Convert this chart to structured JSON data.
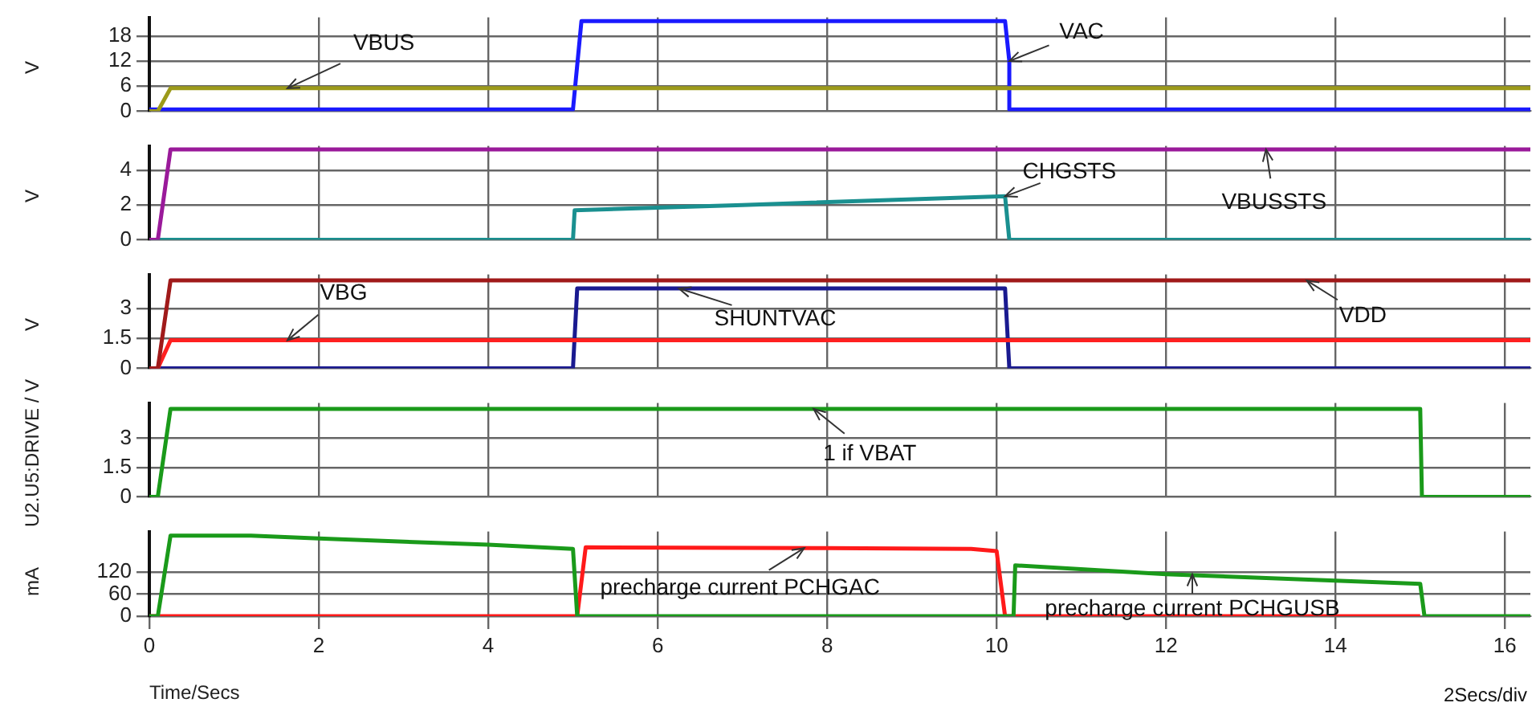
{
  "chart_data": [
    {
      "type": "line",
      "ylabel": "V",
      "xlim": [
        0,
        16.3
      ],
      "xticks": [
        0,
        2,
        4,
        6,
        8,
        10,
        12,
        14,
        16
      ],
      "ylim": [
        0,
        22.5
      ],
      "yticks": [
        0,
        6,
        12,
        18
      ],
      "grid": true,
      "tick_labels": "y",
      "series": [
        {
          "color": "#9c9a1a",
          "x": [
            0,
            0.1,
            0.25,
            16.3
          ],
          "values": [
            0,
            0,
            5.5,
            5.5
          ]
        },
        {
          "color": "#1a1aff",
          "x": [
            0,
            5.0,
            5.1,
            10.1,
            10.15,
            10.15,
            16.3
          ],
          "values": [
            0.4,
            0.4,
            21.6,
            21.6,
            12,
            0.4,
            0.4
          ]
        }
      ],
      "annotations": [
        {
          "text": "VBUS",
          "x": 1.63,
          "y": 5.5
        },
        {
          "text": "VAC",
          "x": 10.15,
          "y": 12
        }
      ]
    },
    {
      "type": "line",
      "ylabel": "V",
      "xlim": [
        0,
        16.3
      ],
      "xticks": [
        0,
        2,
        4,
        6,
        8,
        10,
        12,
        14,
        16
      ],
      "ylim": [
        0,
        5.4
      ],
      "yticks": [
        0,
        2,
        4
      ],
      "grid": true,
      "tick_labels": "y",
      "series": [
        {
          "color": "#9a1a9a",
          "x": [
            0,
            0.1,
            0.25,
            16.3
          ],
          "values": [
            0,
            0,
            5.2,
            5.2
          ]
        },
        {
          "color": "#1a9090",
          "x": [
            0,
            5.0,
            5.02,
            7,
            10.1,
            10.15,
            16.3
          ],
          "values": [
            0,
            0,
            1.7,
            2.0,
            2.5,
            0,
            0
          ]
        }
      ],
      "annotations": [
        {
          "text": "CHGSTS",
          "x": 10.1,
          "y": 2.5
        },
        {
          "text": "VBUSSTS",
          "x": 13.18,
          "y": 5.2
        }
      ]
    },
    {
      "type": "line",
      "ylabel": "V",
      "xlim": [
        0,
        16.3
      ],
      "xticks": [
        0,
        2,
        4,
        6,
        8,
        10,
        12,
        14,
        16
      ],
      "ylim": [
        0,
        4.7
      ],
      "yticks": [
        0,
        1.5,
        3
      ],
      "grid": true,
      "tick_labels": "y",
      "series": [
        {
          "color": "#a01a1a",
          "x": [
            0,
            0.1,
            0.25,
            16.3
          ],
          "values": [
            0,
            0,
            4.4,
            4.4
          ]
        },
        {
          "color": "#ff2020",
          "x": [
            0,
            0.1,
            0.25,
            16.3
          ],
          "values": [
            0,
            0,
            1.4,
            1.4
          ]
        },
        {
          "color": "#1a1a90",
          "x": [
            0,
            5.0,
            5.05,
            10.1,
            10.15,
            16.3
          ],
          "values": [
            0,
            0,
            4.0,
            4.0,
            0,
            0
          ]
        }
      ],
      "annotations": [
        {
          "text": "VBG",
          "x": 1.63,
          "y": 1.4
        },
        {
          "text": "SHUNTVAC",
          "x": 6.25,
          "y": 4.0
        },
        {
          "text": "VDD",
          "x": 13.66,
          "y": 4.4
        }
      ]
    },
    {
      "type": "line",
      "ylabel": "U2.U5:DRIVE / V",
      "xlim": [
        0,
        16.3
      ],
      "xticks": [
        0,
        2,
        4,
        6,
        8,
        10,
        12,
        14,
        16
      ],
      "ylim": [
        0,
        4.8
      ],
      "yticks": [
        0,
        1.5,
        3
      ],
      "grid": true,
      "tick_labels": "y",
      "series": [
        {
          "color": "#1a9a1a",
          "x": [
            0,
            0.1,
            0.25,
            15.0,
            15.02,
            16.3
          ],
          "values": [
            0,
            0,
            4.5,
            4.5,
            0,
            0
          ]
        }
      ],
      "annotations": [
        {
          "text": "1 if VBAT",
          "x": 7.84,
          "y": 4.5
        }
      ]
    },
    {
      "type": "line",
      "ylabel": "mA",
      "xlabel": "Time/Secs",
      "xlim": [
        0,
        16.3
      ],
      "xticks": [
        0,
        2,
        4,
        6,
        8,
        10,
        12,
        14,
        16
      ],
      "ylim": [
        0,
        230
      ],
      "yticks": [
        0,
        60,
        120
      ],
      "grid": true,
      "series": [
        {
          "color": "#1a9a1a",
          "x": [
            0,
            0.1,
            0.25,
            1.2,
            2,
            4,
            5.0,
            5.05,
            10.2,
            10.22,
            12,
            15.0,
            15.05,
            16.3
          ],
          "values": [
            0,
            0,
            219,
            219,
            211,
            194,
            183,
            0,
            0,
            138,
            114,
            88,
            0,
            0
          ]
        },
        {
          "color": "#ff1a1a",
          "x": [
            0,
            5.05,
            5.15,
            8,
            9.7,
            10.0,
            10.1,
            15.0
          ],
          "values": [
            0,
            0,
            187,
            185,
            183,
            177,
            0,
            0
          ]
        }
      ],
      "annotations": [
        {
          "text": "precharge current PCHGAC",
          "x": 7.73,
          "y": 185
        },
        {
          "text": "precharge current PCHGUSB",
          "x": 12.31,
          "y": 114
        },
        "2Secs/div"
      ]
    }
  ]
}
